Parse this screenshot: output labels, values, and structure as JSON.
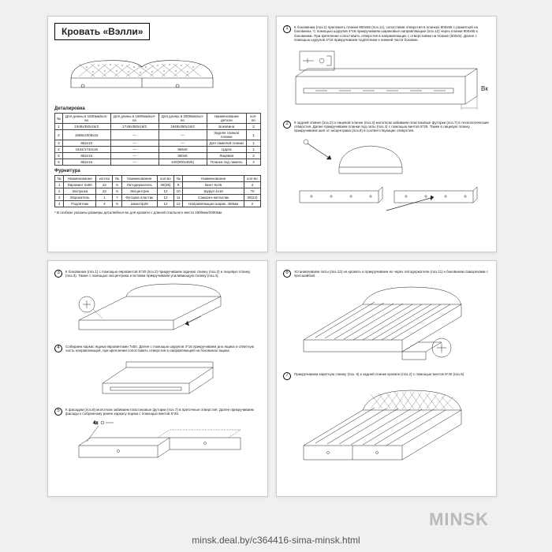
{
  "title": "Кровать «Вэлли»",
  "section_parts": "Деталировка",
  "section_hardware": "Фурнитура",
  "parts_headers": [
    "№",
    "Для длины в 1600мм/кол-во",
    "Для длины в 1800мм/кол-во",
    "Для длины в 2000мм/кол-во",
    "Наименование детали",
    "кол-во"
  ],
  "parts_rows": [
    [
      "1",
      "1948x350x16/2",
      "1748x350x16/2",
      "1948x350x16/2",
      "Боковина",
      "2"
    ],
    [
      "2",
      "1588x1008x16",
      "—",
      "—",
      "Задняя спинка/планки",
      "1"
    ],
    [
      "3",
      "862x10",
      "—",
      "—",
      "Для ламелей планки",
      "1"
    ],
    [
      "4",
      "1634/1734x16",
      "—",
      "865x6",
      "Царга",
      "1"
    ],
    [
      "5",
      "862x16",
      "—",
      "860x6",
      "Лицевая",
      "2"
    ],
    [
      "6",
      "862x16",
      "—",
      "100(900x45/6)",
      "Планка под ламель",
      "4"
    ]
  ],
  "hw_headers": [
    "№",
    "Наименование",
    "кол-во",
    "№",
    "Наименование",
    "кол-во",
    "№",
    "Наименование",
    "кол-во"
  ],
  "hw_rows": [
    [
      "1",
      "Евровинт 5x50",
      "22",
      "5",
      "Латодержатель",
      "28(36)",
      "9",
      "Винт 6x45",
      "4"
    ],
    [
      "2",
      "Заглушка",
      "22",
      "6",
      "Эксцентрик",
      "12",
      "10",
      "Шуруп 4x16",
      "70"
    ],
    [
      "3",
      "Еврокатель",
      "1",
      "7",
      "Футорка пластик",
      "12",
      "11",
      "Саморез металлик",
      "28(24)"
    ],
    [
      "4",
      "Подпятник",
      "4",
      "8",
      "Шкантф25",
      "12",
      "12",
      "Направляющая шарик. 450мм",
      "2"
    ]
  ],
  "footnote": "* В скобках указаны размеры деталей/кол-во для кровати с длиной спального места 1800мм/2000мм.",
  "step1": "К боковинам (поз.1) приложить планки 800x65 (поз.11), сопоставив отверстия в планках 800x65 с разметкой на боковинах. С помощью шурупов 4*16 прикручиваем шариковые направляющие (поз.12) через планки 800x65 к боковинам. При креплении сопоставить отверстия в направляющих с отверстиями на планке (600x5). Далее с помощью шурупов 4*16 прикручиваем подпятники к нижней части боковин.",
  "step2": "К задней спинке (поз.2) и лицевой планке (поз.3) молотком забиваем пластиковые футорки (поз.7) в технологические отверстия. Далее прикручиваем планки под латы (поз.4) с помощью винтов 6*25. Также в лицевую планку прикручиваем шип от эксцентрика (поз.8) в соответствующие отверстия.",
  "step3": "К боковинам (поз.1) с помощью евровинтов 5*30 (поз.2) прикручиваем заднюю спинку (поз.2) и лицевую планку (поз.3). Также с помощью эксцентрика и вставки прикручиваем усиливающую планку (поз.4).",
  "step4": "Собираем каркас ящика евровинтами 7x50. Далее с помощью шурупов 4*16 прикручиваем дно ящика и ответную часть направляющей, при креплении сопоставить отверстия в направляющей на боковинах ящика.",
  "step5": "К фасадам (поз.8) молотком забиваем пластиковые футорки (поз.7) в приточные отверстия. Далее прикручиваем фасады к собранному ранее каркасу ящика с помощью винтов 6*25.",
  "step6": "Устанавливаем латы (поз.12) на кровать и прикручиваем их через латодержатели (поз.11) к боковинам саморезами с пресшайбой.",
  "step7": "Прикручиваем каретную спинку (поз. 9) к задней спинке кровати (поз.2) с помощью винтов 5*40 (поз.5)",
  "watermark": "MINSK",
  "url": "minsk.deal.by/c364416-sima-minsk.html",
  "label_bk": "Вк"
}
